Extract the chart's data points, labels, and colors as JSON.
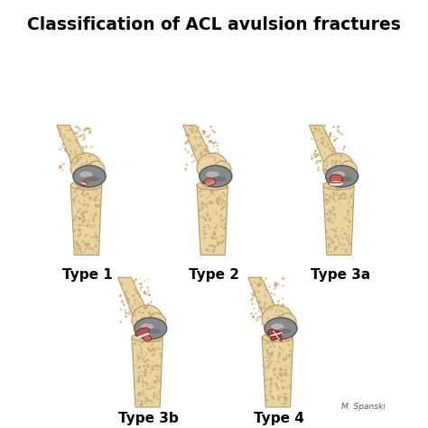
{
  "title": "Classification of ACL avulsion fractures",
  "title_fontsize": 13.5,
  "title_fontweight": "bold",
  "background_color": "#ffffff",
  "types": [
    "Type 1",
    "Type 2",
    "Type 3a",
    "Type 3b",
    "Type 4"
  ],
  "bone_color": "#E8D5A3",
  "bone_color2": "#DEC990",
  "bone_edge_color": "#B8956A",
  "disc_color": "#A0A0A0",
  "disc_edge_color": "#707070",
  "label_fontsize": 11,
  "label_fontweight": "bold",
  "author_text": "M. Spanski",
  "fracture_red": "#C85050",
  "fracture_pink": "#E8A0A0"
}
